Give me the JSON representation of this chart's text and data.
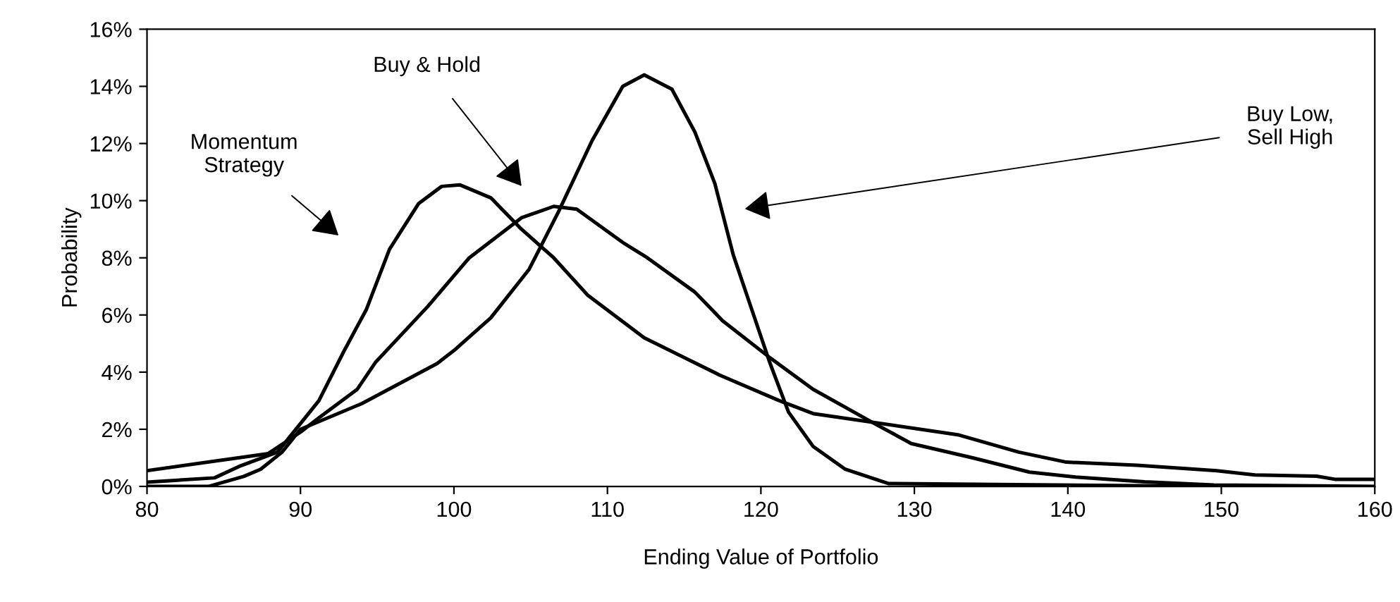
{
  "chart_data": {
    "type": "line",
    "xlabel": "Ending Value of Portfolio",
    "ylabel": "Probability",
    "xlim": [
      80,
      160
    ],
    "xticks": [
      80,
      90,
      100,
      110,
      120,
      130,
      140,
      150,
      160
    ],
    "ylim": [
      0,
      16
    ],
    "yticks": [
      {
        "value": 0,
        "label": "0%"
      },
      {
        "value": 2,
        "label": "2%"
      },
      {
        "value": 4,
        "label": "4%"
      },
      {
        "value": 6,
        "label": "6%"
      },
      {
        "value": 8,
        "label": "8%"
      },
      {
        "value": 10,
        "label": "10%"
      },
      {
        "value": 12,
        "label": "12%"
      },
      {
        "value": 14,
        "label": "14%"
      },
      {
        "value": 16,
        "label": "16%"
      }
    ],
    "grid": false,
    "legend": false,
    "marker": "none",
    "line_style": "solid",
    "series": [
      {
        "color": "#000000",
        "x": [
          80,
          84,
          86.3,
          87.4,
          88.8,
          90,
          94,
          98.9,
          100.1,
          102.4,
          104.9,
          106.8,
          109,
          111,
          112.4,
          114.2,
          115.7,
          117,
          118.2,
          119.4,
          120.6,
          121.8,
          123.4,
          125.5,
          128.3,
          150
        ],
        "values": [
          0,
          0,
          0.35,
          0.6,
          1.2,
          2.0,
          2.9,
          4.3,
          4.8,
          5.9,
          7.6,
          9.6,
          12.1,
          14.0,
          14.4,
          13.9,
          12.4,
          10.6,
          8.1,
          6.2,
          4.3,
          2.6,
          1.4,
          0.6,
          0.1,
          0
        ]
      },
      {
        "color": "#000000",
        "x": [
          80,
          84.4,
          86,
          88.5,
          90,
          91.2,
          92.8,
          94.3,
          95.8,
          97.7,
          99.2,
          100.4,
          102.4,
          104.4,
          106.5,
          108.7,
          112.4,
          117.3,
          121.2,
          123.4,
          132.9,
          136.8,
          139.9,
          144.5,
          149.7,
          152.2,
          156.2,
          157.4,
          160
        ],
        "values": [
          0.15,
          0.3,
          0.7,
          1.2,
          2.2,
          3.0,
          4.7,
          6.2,
          8.3,
          9.9,
          10.5,
          10.55,
          10.1,
          9.0,
          8.0,
          6.7,
          5.2,
          3.9,
          3.0,
          2.55,
          1.8,
          1.2,
          0.85,
          0.74,
          0.55,
          0.4,
          0.36,
          0.25,
          0.25
        ]
      },
      {
        "color": "#000000",
        "x": [
          80,
          87.9,
          90,
          91.2,
          93.7,
          94.9,
          98.3,
          101,
          104.4,
          106.5,
          108,
          111.1,
          112.6,
          115.7,
          117.5,
          120.6,
          123.4,
          127.4,
          129.8,
          133.8,
          137.5,
          140.5,
          145,
          149.5,
          160
        ],
        "values": [
          0.55,
          1.15,
          1.9,
          2.4,
          3.4,
          4.35,
          6.3,
          8.0,
          9.4,
          9.8,
          9.7,
          8.5,
          8.0,
          6.8,
          5.8,
          4.5,
          3.4,
          2.2,
          1.5,
          1.0,
          0.5,
          0.33,
          0.16,
          0.05,
          0
        ]
      }
    ],
    "annotations": [
      "Momentum\nStrategy",
      "Buy & Hold",
      "Buy Low,\nSell High"
    ]
  }
}
